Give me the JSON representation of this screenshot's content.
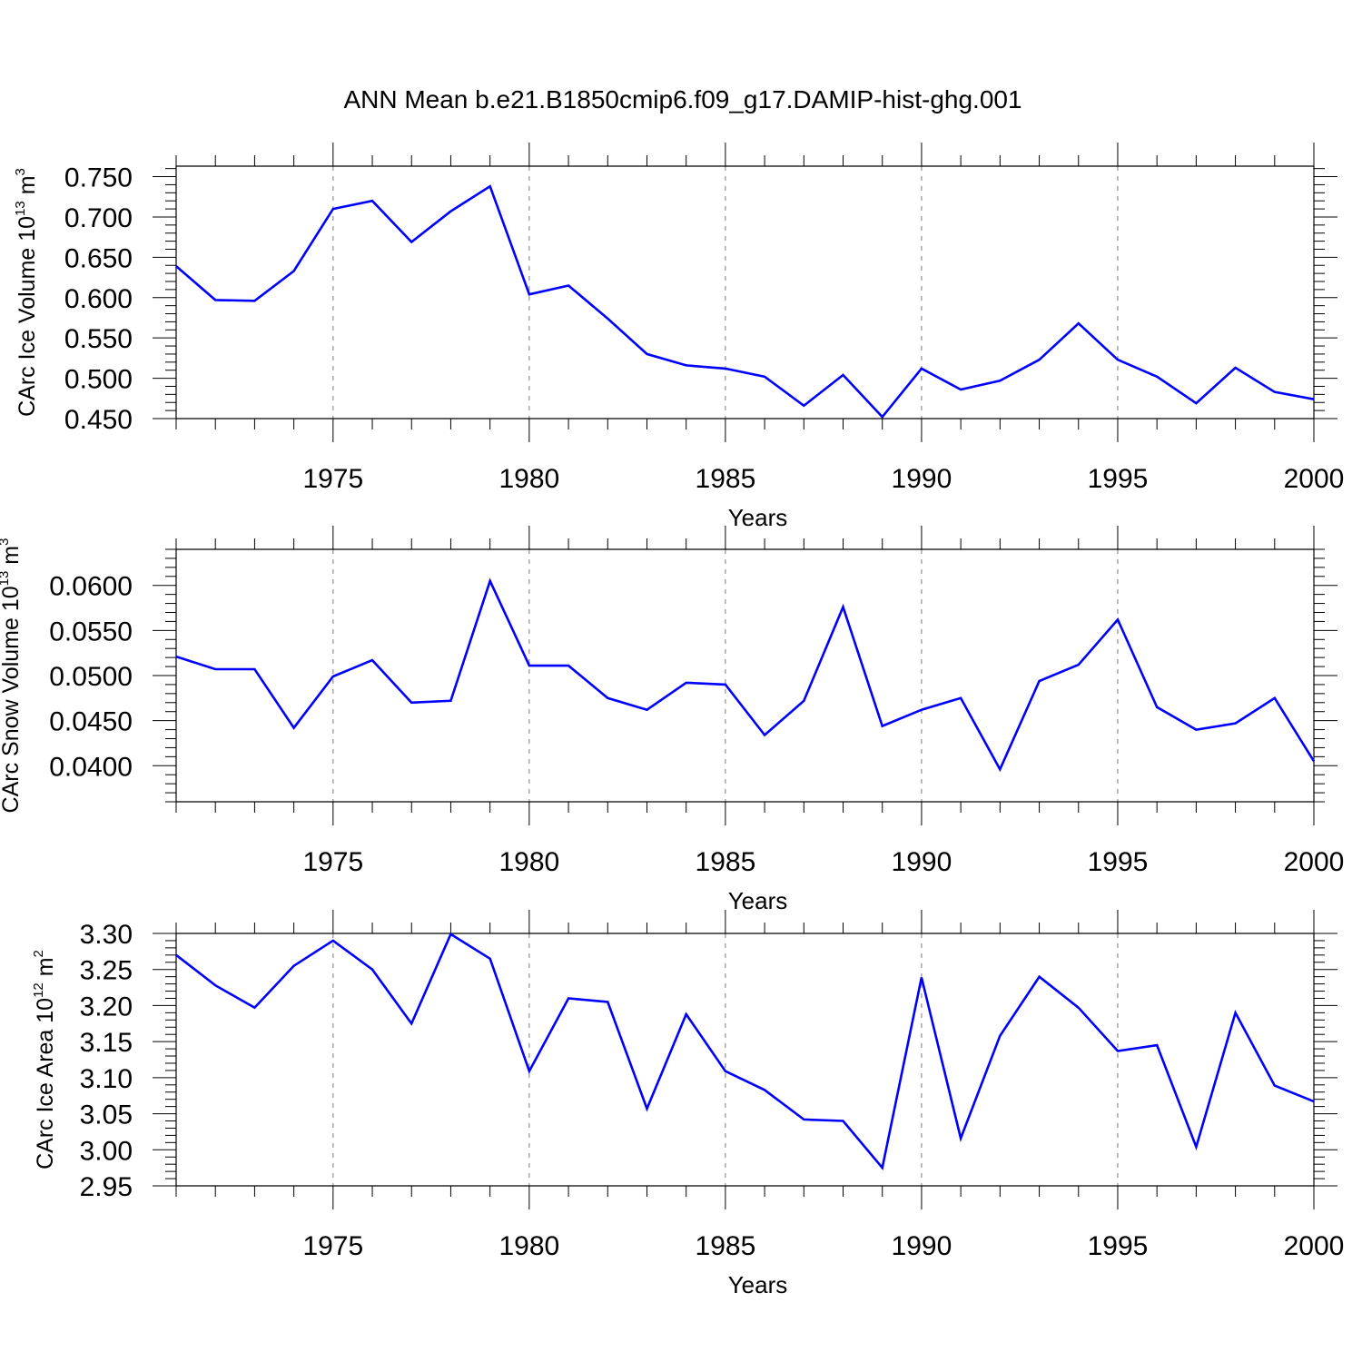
{
  "chart_data": {
    "type": "line",
    "title": "ANN Mean b.e21.B1850cmip6.f09_g17.DAMIP-hist-ghg.001",
    "line_color": "#0000ff",
    "panels": [
      {
        "ylabel": "CArc Ice Volume 10",
        "ylabel_exp": "13",
        "ylabel_unit": "m",
        "ylabel_unit_exp": "3",
        "xlabel": "Years",
        "ylim": [
          0.45,
          0.763
        ],
        "xlim": [
          1971,
          2000
        ],
        "yticks": [
          "0.450",
          "0.500",
          "0.550",
          "0.600",
          "0.650",
          "0.700",
          "0.750"
        ],
        "xticks": [
          "1975",
          "1980",
          "1985",
          "1990",
          "1995",
          "2000"
        ],
        "series": [
          {
            "name": "CArc Ice Volume",
            "x": [
              1971,
              1972,
              1973,
              1974,
              1975,
              1976,
              1977,
              1978,
              1979,
              1980,
              1981,
              1982,
              1983,
              1984,
              1985,
              1986,
              1987,
              1988,
              1989,
              1990,
              1991,
              1992,
              1993,
              1994,
              1995,
              1996,
              1997,
              1998,
              1999,
              2000
            ],
            "values": [
              0.639,
              0.597,
              0.596,
              0.633,
              0.71,
              0.72,
              0.669,
              0.707,
              0.738,
              0.604,
              0.615,
              0.574,
              0.53,
              0.516,
              0.512,
              0.502,
              0.466,
              0.504,
              0.452,
              0.512,
              0.486,
              0.497,
              0.523,
              0.568,
              0.523,
              0.502,
              0.469,
              0.513,
              0.483,
              0.474
            ]
          }
        ]
      },
      {
        "ylabel": "CArc Snow Volume 10",
        "ylabel_exp": "13",
        "ylabel_unit": "m",
        "ylabel_unit_exp": "3",
        "xlabel": "Years",
        "ylim": [
          0.036,
          0.064
        ],
        "xlim": [
          1971,
          2000
        ],
        "yticks": [
          "0.0400",
          "0.0450",
          "0.0500",
          "0.0550",
          "0.0600"
        ],
        "xticks": [
          "1975",
          "1980",
          "1985",
          "1990",
          "1995",
          "2000"
        ],
        "series": [
          {
            "name": "CArc Snow Volume",
            "x": [
              1971,
              1972,
              1973,
              1974,
              1975,
              1976,
              1977,
              1978,
              1979,
              1980,
              1981,
              1982,
              1983,
              1984,
              1985,
              1986,
              1987,
              1988,
              1989,
              1990,
              1991,
              1992,
              1993,
              1994,
              1995,
              1996,
              1997,
              1998,
              1999,
              2000
            ],
            "values": [
              0.0521,
              0.0507,
              0.0507,
              0.0442,
              0.0499,
              0.0517,
              0.047,
              0.0472,
              0.0605,
              0.0511,
              0.0511,
              0.0475,
              0.0462,
              0.0492,
              0.049,
              0.0434,
              0.0472,
              0.0576,
              0.0444,
              0.0462,
              0.0475,
              0.0396,
              0.0494,
              0.0512,
              0.0562,
              0.0465,
              0.044,
              0.0447,
              0.0475,
              0.0405
            ]
          }
        ]
      },
      {
        "ylabel": "CArc Ice Area 10",
        "ylabel_exp": "12",
        "ylabel_unit": "m",
        "ylabel_unit_exp": "2",
        "xlabel": "Years",
        "ylim": [
          2.95,
          3.3
        ],
        "xlim": [
          1971,
          2000
        ],
        "yticks": [
          "2.95",
          "3.00",
          "3.05",
          "3.10",
          "3.15",
          "3.20",
          "3.25",
          "3.30"
        ],
        "xticks": [
          "1975",
          "1980",
          "1985",
          "1990",
          "1995",
          "2000"
        ],
        "series": [
          {
            "name": "CArc Ice Area",
            "x": [
              1971,
              1972,
              1973,
              1974,
              1975,
              1976,
              1977,
              1978,
              1979,
              1980,
              1981,
              1982,
              1983,
              1984,
              1985,
              1986,
              1987,
              1988,
              1989,
              1990,
              1991,
              1992,
              1993,
              1994,
              1995,
              1996,
              1997,
              1998,
              1999,
              2000
            ],
            "values": [
              3.27,
              3.228,
              3.197,
              3.255,
              3.29,
              3.25,
              3.175,
              3.299,
              3.265,
              3.109,
              3.21,
              3.205,
              3.057,
              3.188,
              3.109,
              3.083,
              3.042,
              3.04,
              2.975,
              3.239,
              3.016,
              3.158,
              3.24,
              3.197,
              3.137,
              3.145,
              3.004,
              3.19,
              3.089,
              3.067
            ]
          }
        ]
      }
    ]
  }
}
